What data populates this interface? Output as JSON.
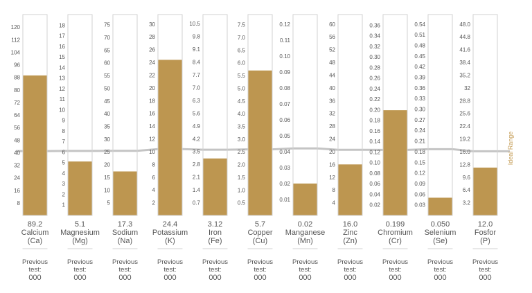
{
  "chart_data": {
    "type": "bar",
    "ideal_range_label": "Ideal Range",
    "colors": {
      "bar": "#bd9650",
      "band": "#e4e4e4",
      "midline": "#c4c4c4",
      "frame": "#d2d2d2",
      "text": "#555555",
      "label_accent": "#c59d56"
    },
    "series": [
      {
        "value": "89.2",
        "name": "Calcium",
        "symbol": "(Ca)",
        "y": 89.2,
        "ylim": [
          0,
          128
        ],
        "ticks": [
          "8",
          "16",
          "24",
          "32",
          "40",
          "48",
          "56",
          "64",
          "72",
          "80",
          "88",
          "96",
          "104",
          "112",
          "120"
        ],
        "band": [
          36,
          48,
          48,
          36
        ],
        "ideal": 41,
        "prev_label_1": "Previous",
        "prev_label_2": "test:",
        "prev_value": "000"
      },
      {
        "value": "5.1",
        "name": "Magnesium",
        "symbol": "(Mg)",
        "y": 5.1,
        "ylim": [
          0,
          19
        ],
        "ticks": [
          "1",
          "2",
          "3",
          "4",
          "5",
          "6",
          "7",
          "8",
          "9",
          "10",
          "11",
          "12",
          "13",
          "14",
          "15",
          "16",
          "17",
          "18"
        ],
        "band": [
          4.6,
          10.2,
          10.2,
          4.6
        ],
        "ideal": 6.1,
        "prev_label_1": "Previous",
        "prev_label_2": "test:",
        "prev_value": "000"
      },
      {
        "value": "17.3",
        "name": "Sodium",
        "symbol": "(Na)",
        "y": 17.3,
        "ylim": [
          0,
          79
        ],
        "ticks": [
          "5",
          "10",
          "15",
          "20",
          "25",
          "30",
          "35",
          "40",
          "45",
          "50",
          "55",
          "60",
          "65",
          "70",
          "75"
        ],
        "band": [
          17.3,
          35,
          35,
          17.3
        ],
        "ideal": 25.4,
        "prev_label_1": "Previous",
        "prev_label_2": "test:",
        "prev_value": "000"
      },
      {
        "value": "24.4",
        "name": "Potassium",
        "symbol": "(K)",
        "y": 24.4,
        "ylim": [
          0,
          31.5
        ],
        "ticks": [
          "2",
          "4",
          "6",
          "8",
          "10",
          "12",
          "14",
          "16",
          "18",
          "20",
          "22",
          "24",
          "26",
          "28",
          "30"
        ],
        "band": [
          7.1,
          13.9,
          13.9,
          7.1
        ],
        "ideal": 10.4,
        "prev_label_1": "Previous",
        "prev_label_2": "test:",
        "prev_value": "000"
      },
      {
        "value": "3.12",
        "name": "Iron",
        "symbol": "(Fe)",
        "y": 3.12,
        "ylim": [
          0,
          11
        ],
        "ticks": [
          "0.7",
          "1.4",
          "2.1",
          "2.8",
          "3.5",
          "4.2",
          "4.9",
          "5.6",
          "6.3",
          "7.0",
          "7.7",
          "8.4",
          "9.1",
          "9.8",
          "10.5"
        ],
        "band": [
          2.4,
          4.2,
          4.2,
          2.4
        ],
        "ideal": 3.6,
        "prev_label_1": "Previous",
        "prev_label_2": "test:",
        "prev_value": "000"
      },
      {
        "value": "5.7",
        "name": "Copper",
        "symbol": "(Cu)",
        "y": 5.7,
        "ylim": [
          0,
          7.9
        ],
        "ticks": [
          "0.5",
          "1.0",
          "1.5",
          "2.0",
          "2.5",
          "3.0",
          "3.5",
          "4.0",
          "4.5",
          "5.0",
          "5.5",
          "6.0",
          "6.5",
          "7.0",
          "7.5"
        ],
        "band": [
          1.65,
          3.0,
          3.0,
          1.65
        ],
        "ideal": 2.6,
        "prev_label_1": "Previous",
        "prev_label_2": "test:",
        "prev_value": "000"
      },
      {
        "value": "0.02",
        "name": "Manganese",
        "symbol": "(Mn)",
        "y": 0.02,
        "ylim": [
          0,
          0.126
        ],
        "ticks": [
          "0.01",
          "0.02",
          "0.03",
          "0.04",
          "0.05",
          "0.06",
          "0.07",
          "0.08",
          "0.09",
          "0.10",
          "0.11",
          "0.12"
        ],
        "band": [
          0.029,
          0.06,
          0.06,
          0.029
        ],
        "ideal": 0.042,
        "prev_label_1": "Previous",
        "prev_label_2": "test:",
        "prev_value": "000"
      },
      {
        "value": "16.0",
        "name": "Zinc",
        "symbol": "(Zn)",
        "y": 16.0,
        "ylim": [
          0,
          63
        ],
        "ticks": [
          "4",
          "8",
          "12",
          "16",
          "20",
          "24",
          "28",
          "32",
          "36",
          "40",
          "44",
          "48",
          "52",
          "56",
          "60"
        ],
        "band": [
          16,
          24,
          24,
          16
        ],
        "ideal": 20.6,
        "prev_label_1": "Previous",
        "prev_label_2": "test:",
        "prev_value": "000"
      },
      {
        "value": "0.199",
        "name": "Chromium",
        "symbol": "(Cr)",
        "y": 0.199,
        "ylim": [
          0,
          0.38
        ],
        "ticks": [
          "0.02",
          "0.04",
          "0.06",
          "0.08",
          "0.10",
          "0.12",
          "0.14",
          "0.16",
          "0.18",
          "0.20",
          "0.22",
          "0.24",
          "0.26",
          "0.28",
          "0.30",
          "0.32",
          "0.34",
          "0.36"
        ],
        "band": [
          0.087,
          0.15,
          0.15,
          0.087
        ],
        "ideal": 0.124,
        "prev_label_1": "Previous",
        "prev_label_2": "test:",
        "prev_value": "000"
      },
      {
        "value": "0.050",
        "name": "Selenium",
        "symbol": "(Se)",
        "y": 0.05,
        "ylim": [
          0,
          0.567
        ],
        "ticks": [
          "0.03",
          "0.06",
          "0.09",
          "0.12",
          "0.15",
          "0.18",
          "0.21",
          "0.24",
          "0.27",
          "0.30",
          "0.33",
          "0.36",
          "0.39",
          "0.42",
          "0.45",
          "0.48",
          "0.51",
          "0.54"
        ],
        "band": [
          0.122,
          0.23,
          0.23,
          0.122
        ],
        "ideal": 0.187,
        "prev_label_1": "Previous",
        "prev_label_2": "test:",
        "prev_value": "000"
      },
      {
        "value": "12.0",
        "name": "Fosfor",
        "symbol": "(P)",
        "y": 12.0,
        "ylim": [
          0,
          50.4
        ],
        "ticks": [
          "3.2",
          "6.4",
          "9.6",
          "12.8",
          "16.0",
          "19.2",
          "22.4",
          "25.6",
          "28.8",
          "32",
          "35.2",
          "38.4",
          "41.6",
          "44.8",
          "48.0"
        ],
        "band": [
          11,
          20.7,
          20.7,
          11
        ],
        "ideal": 16.1,
        "prev_label_1": "Previous",
        "prev_label_2": "test:",
        "prev_value": "000"
      }
    ]
  }
}
